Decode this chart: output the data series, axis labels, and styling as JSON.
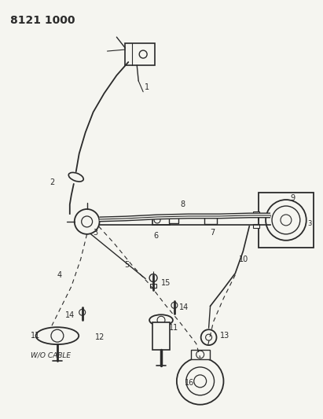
{
  "title": "8121 1000",
  "bg": "#f5f5f0",
  "lc": "#2a2a2a",
  "fig_width": 4.11,
  "fig_height": 5.33,
  "dpi": 100
}
